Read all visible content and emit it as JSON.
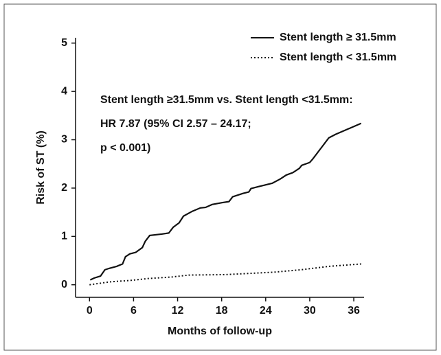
{
  "chart_data": {
    "type": "line",
    "xlabel": "Months of follow-up",
    "ylabel": "Risk of ST (%)",
    "annotation": [
      "Stent length ≥31.5mm vs. Stent length <31.5mm:",
      "HR 7.87 (95% CI 2.57 – 24.17;",
      "p < 0.001)"
    ],
    "xlim": [
      -1.9,
      37.4
    ],
    "ylim": [
      -0.26,
      5.11
    ],
    "xticks": [
      0,
      6,
      12,
      18,
      24,
      30,
      36
    ],
    "yticks": [
      0,
      1,
      2,
      3,
      4,
      5
    ],
    "legend": "upper right",
    "series": [
      {
        "name": "Stent length ≥ 31.5mm",
        "color": "#111111",
        "style": "solid",
        "x": [
          0.1,
          0.65,
          1.5,
          2.1,
          2.7,
          3.7,
          4.5,
          4.9,
          5.5,
          6.3,
          7.2,
          7.6,
          8.2,
          9.9,
          10.8,
          11.4,
          12.2,
          12.8,
          14,
          15.1,
          15.8,
          16.7,
          18.1,
          19,
          19.5,
          20.9,
          21.7,
          22,
          23,
          24.9,
          26,
          26.8,
          27.7,
          28.6,
          28.9,
          30,
          30.4,
          31.4,
          32.6,
          33.5,
          37
        ],
        "values": [
          0.1,
          0.14,
          0.18,
          0.31,
          0.34,
          0.38,
          0.43,
          0.58,
          0.64,
          0.67,
          0.77,
          0.9,
          1.02,
          1.05,
          1.07,
          1.19,
          1.28,
          1.42,
          1.52,
          1.59,
          1.6,
          1.66,
          1.7,
          1.72,
          1.82,
          1.89,
          1.92,
          1.99,
          2.03,
          2.1,
          2.19,
          2.27,
          2.32,
          2.41,
          2.47,
          2.53,
          2.6,
          2.8,
          3.04,
          3.11,
          3.34
        ]
      },
      {
        "name": "Stent length < 31.5mm",
        "color": "#111111",
        "style": "dotted",
        "x": [
          0,
          2.8,
          5.6,
          8.1,
          11.2,
          13.5,
          18.6,
          25.1,
          28.8,
          32.6,
          37
        ],
        "values": [
          0,
          0.06,
          0.09,
          0.13,
          0.16,
          0.2,
          0.21,
          0.26,
          0.31,
          0.38,
          0.43
        ]
      }
    ]
  }
}
